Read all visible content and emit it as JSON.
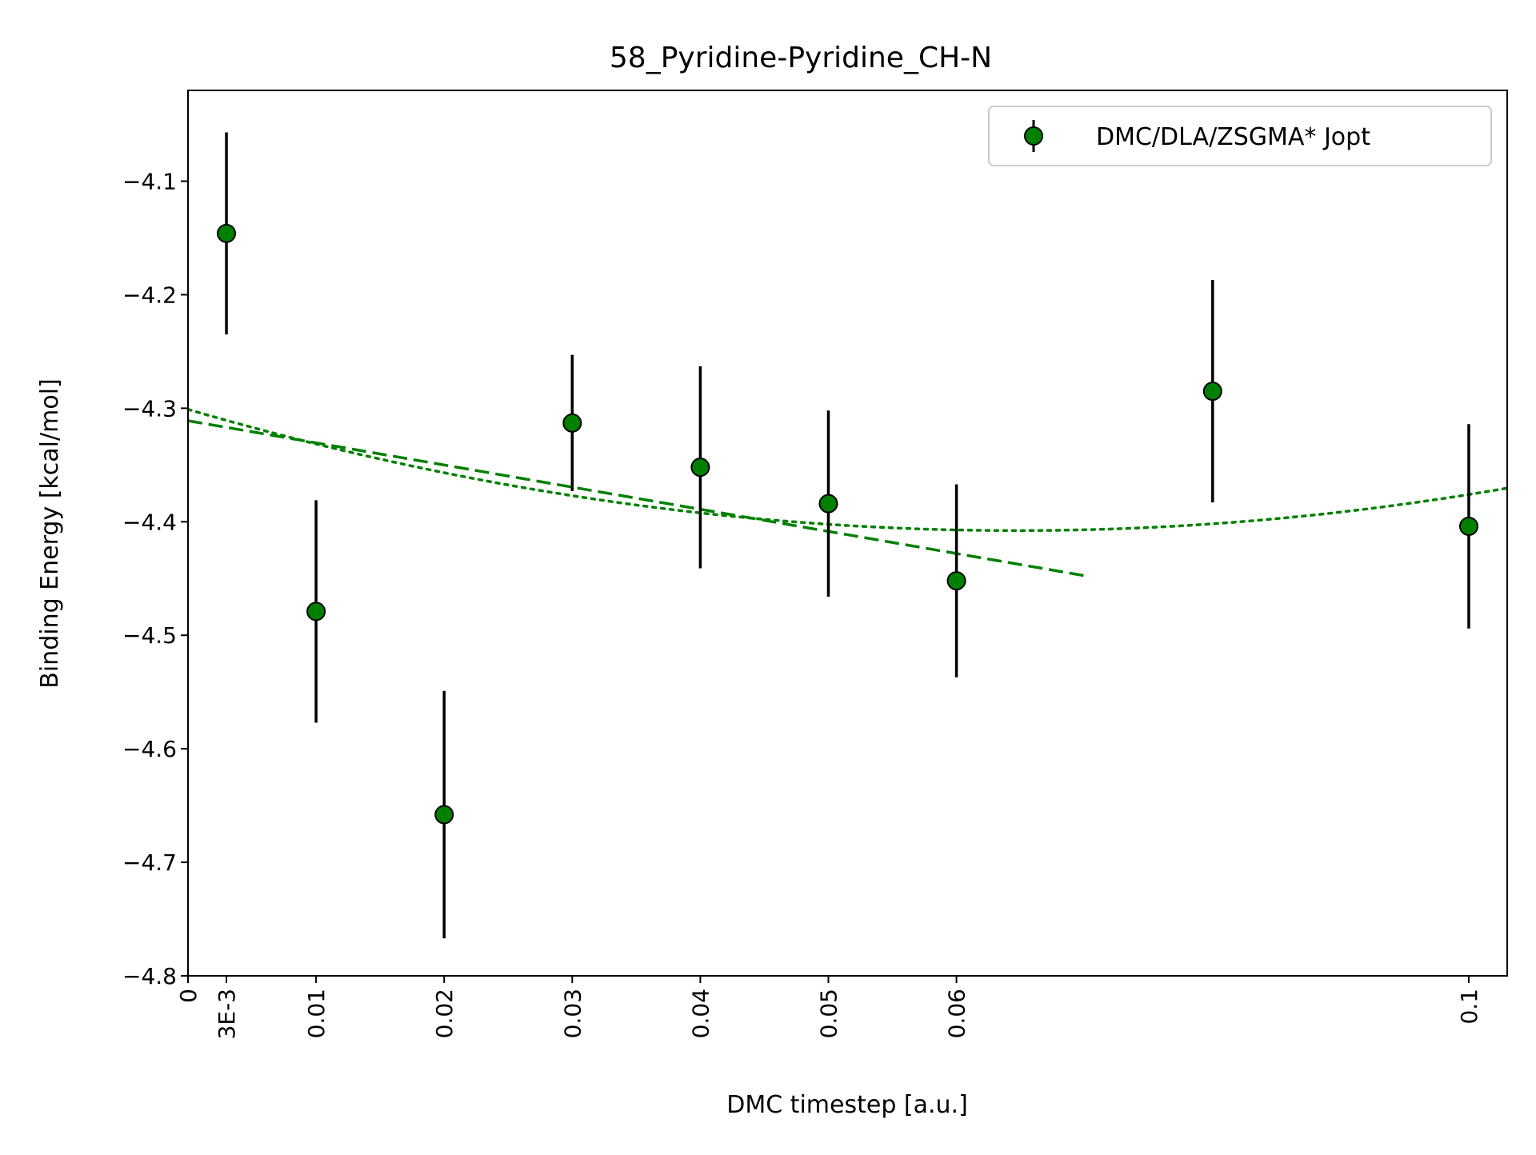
{
  "chart_data": {
    "type": "scatter",
    "title": "58_Pyridine-Pyridine_CH-N",
    "xlabel": "DMC timestep [a.u.]",
    "ylabel": "Binding Energy [kcal/mol]",
    "xlim": [
      0,
      0.103
    ],
    "ylim": [
      -4.8,
      -4.02
    ],
    "xticks": [
      {
        "value": 0,
        "label": "0"
      },
      {
        "value": 0.003,
        "label": "3E-3"
      },
      {
        "value": 0.01,
        "label": "0.01"
      },
      {
        "value": 0.02,
        "label": "0.02"
      },
      {
        "value": 0.03,
        "label": "0.03"
      },
      {
        "value": 0.04,
        "label": "0.04"
      },
      {
        "value": 0.05,
        "label": "0.05"
      },
      {
        "value": 0.06,
        "label": "0.06"
      },
      {
        "value": 0.1,
        "label": "0.1"
      }
    ],
    "yticks": [
      {
        "value": -4.1,
        "label": "−4.1"
      },
      {
        "value": -4.2,
        "label": "−4.2"
      },
      {
        "value": -4.3,
        "label": "−4.3"
      },
      {
        "value": -4.4,
        "label": "−4.4"
      },
      {
        "value": -4.5,
        "label": "−4.5"
      },
      {
        "value": -4.6,
        "label": "−4.6"
      },
      {
        "value": -4.7,
        "label": "−4.7"
      },
      {
        "value": -4.8,
        "label": "−4.8"
      }
    ],
    "series": [
      {
        "name": "DMC/DLA/ZSGMA* Jopt",
        "color": "#008000",
        "errorbar_color": "#000000",
        "points": [
          {
            "x": 0.003,
            "y": -4.146,
            "err": 0.089
          },
          {
            "x": 0.01,
            "y": -4.479,
            "err": 0.098
          },
          {
            "x": 0.02,
            "y": -4.658,
            "err": 0.109
          },
          {
            "x": 0.03,
            "y": -4.313,
            "err": 0.06
          },
          {
            "x": 0.04,
            "y": -4.352,
            "err": 0.089
          },
          {
            "x": 0.05,
            "y": -4.384,
            "err": 0.082
          },
          {
            "x": 0.06,
            "y": -4.452,
            "err": 0.085
          },
          {
            "x": 0.08,
            "y": -4.285,
            "err": 0.098
          },
          {
            "x": 0.1,
            "y": -4.404,
            "err": 0.09
          }
        ]
      }
    ],
    "fits": [
      {
        "kind": "linear",
        "style": "dashed",
        "color": "#008000",
        "x_range": [
          0,
          0.07
        ],
        "coefficients": [
          -4.311,
          -1.95
        ]
      },
      {
        "kind": "quadratic",
        "style": "dotted",
        "color": "#008000",
        "x_range": [
          0,
          0.103
        ],
        "coefficients": [
          -4.301,
          -3.3,
          25.5
        ]
      }
    ],
    "legend_position": "top-right",
    "grid": false
  }
}
